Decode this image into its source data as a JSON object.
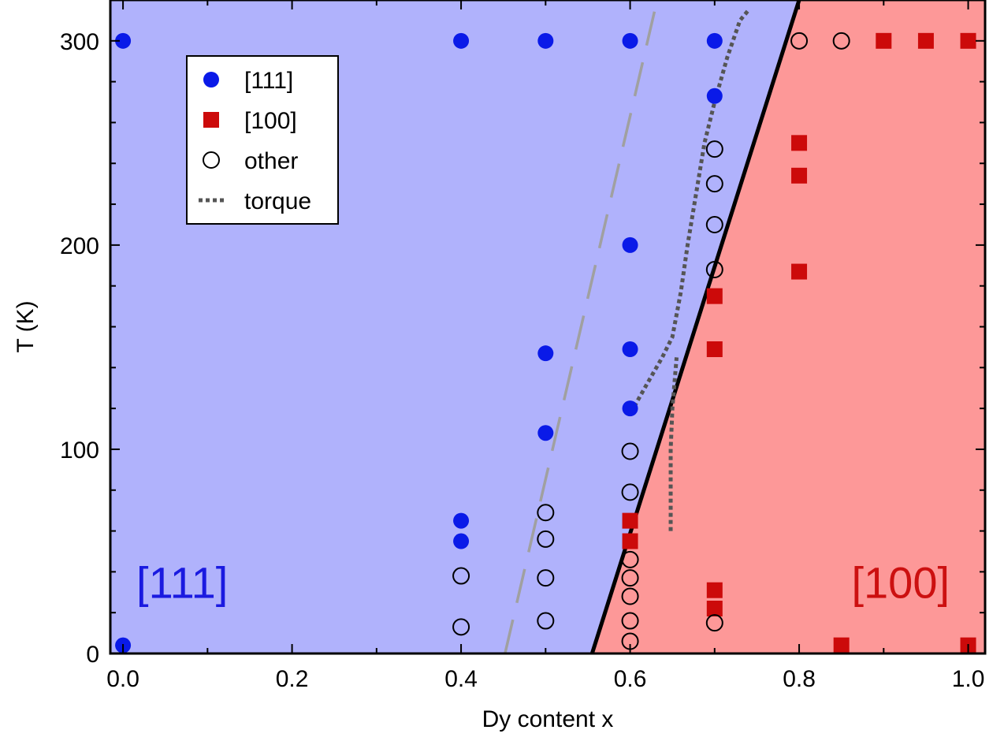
{
  "chart_data": {
    "type": "scatter",
    "xlabel": "Dy content x",
    "ylabel": "T (K)",
    "xlim": [
      -0.015,
      1.02
    ],
    "ylim": [
      0,
      320
    ],
    "xticks": [
      "0.0",
      "0.2",
      "0.4",
      "0.6",
      "0.8",
      "1.0"
    ],
    "xtick_values": [
      0.0,
      0.2,
      0.4,
      0.6,
      0.8,
      1.0
    ],
    "yticks": [
      "0",
      "100",
      "200",
      "300"
    ],
    "ytick_values": [
      0,
      100,
      200,
      300
    ],
    "grid": false,
    "legend_position": "upper-left",
    "regions": [
      {
        "label": "[111]",
        "fill": "#b0b2fc",
        "text_color": "#1a1ae0",
        "text_x": 0.07,
        "text_y": 35
      },
      {
        "label": "[100]",
        "fill": "#fd9898",
        "text_color": "#cc1010",
        "text_x": 0.92,
        "text_y": 35
      }
    ],
    "boundary": {
      "color": "#000000",
      "points": [
        [
          0.555,
          0
        ],
        [
          0.8,
          320
        ]
      ]
    },
    "dashed_boundary": {
      "color": "#a0a0a0",
      "points": [
        [
          0.452,
          0
        ],
        [
          0.632,
          320
        ]
      ]
    },
    "series": [
      {
        "name": "[111]",
        "marker": "filled-circle",
        "color": "#0a1ae8",
        "points": [
          [
            0.0,
            300
          ],
          [
            0.0,
            4
          ],
          [
            0.4,
            300
          ],
          [
            0.4,
            65
          ],
          [
            0.4,
            55
          ],
          [
            0.5,
            300
          ],
          [
            0.5,
            147
          ],
          [
            0.5,
            108
          ],
          [
            0.6,
            300
          ],
          [
            0.6,
            200
          ],
          [
            0.6,
            149
          ],
          [
            0.6,
            120
          ],
          [
            0.7,
            300
          ],
          [
            0.7,
            273
          ]
        ]
      },
      {
        "name": "[100]",
        "marker": "filled-square",
        "color": "#cc0a0a",
        "points": [
          [
            0.6,
            65
          ],
          [
            0.6,
            55
          ],
          [
            0.7,
            175
          ],
          [
            0.7,
            149
          ],
          [
            0.7,
            31
          ],
          [
            0.7,
            22
          ],
          [
            0.8,
            250
          ],
          [
            0.8,
            234
          ],
          [
            0.8,
            187
          ],
          [
            0.85,
            4
          ],
          [
            0.9,
            300
          ],
          [
            0.95,
            300
          ],
          [
            1.0,
            300
          ],
          [
            1.0,
            4
          ]
        ]
      },
      {
        "name": "other",
        "marker": "open-circle",
        "color": "#000000",
        "points": [
          [
            0.4,
            38
          ],
          [
            0.4,
            13
          ],
          [
            0.5,
            69
          ],
          [
            0.5,
            56
          ],
          [
            0.5,
            37
          ],
          [
            0.5,
            16
          ],
          [
            0.6,
            99
          ],
          [
            0.6,
            79
          ],
          [
            0.6,
            46
          ],
          [
            0.6,
            37
          ],
          [
            0.6,
            28
          ],
          [
            0.6,
            16
          ],
          [
            0.6,
            6
          ],
          [
            0.7,
            247
          ],
          [
            0.7,
            230
          ],
          [
            0.7,
            210
          ],
          [
            0.7,
            188
          ],
          [
            0.7,
            15
          ],
          [
            0.8,
            300
          ],
          [
            0.85,
            300
          ]
        ]
      },
      {
        "name": "torque",
        "marker": "dotted-line",
        "color": "#555555",
        "segments": [
          [
            [
              0.605,
              121
            ],
            [
              0.62,
              132
            ],
            [
              0.638,
              145
            ],
            [
              0.65,
              155
            ],
            [
              0.66,
              177
            ],
            [
              0.668,
              200
            ],
            [
              0.678,
              225
            ],
            [
              0.688,
              250
            ],
            [
              0.7,
              270
            ],
            [
              0.715,
              292
            ],
            [
              0.73,
              310
            ],
            [
              0.74,
              315
            ]
          ],
          [
            [
              0.648,
              60
            ],
            [
              0.648,
              100
            ],
            [
              0.65,
              120
            ],
            [
              0.655,
              145
            ]
          ]
        ]
      }
    ]
  }
}
